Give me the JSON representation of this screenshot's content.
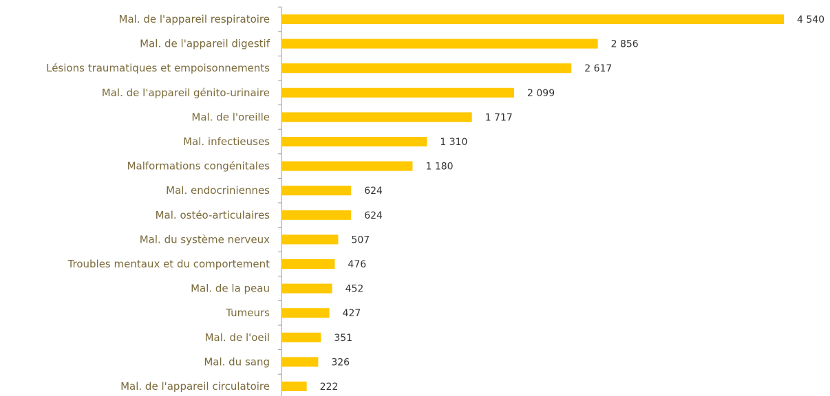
{
  "chart_data": {
    "type": "bar",
    "orientation": "horizontal",
    "categories": [
      "Mal. de l'appareil respiratoire",
      "Mal. de l'appareil digestif",
      "Lésions traumatiques et empoisonnements",
      "Mal. de l'appareil génito-urinaire",
      "Mal. de l'oreille",
      "Mal. infectieuses",
      "Malformations congénitales",
      "Mal. endocriniennes",
      "Mal. ostéo-articulaires",
      "Mal. du système nerveux",
      "Troubles mentaux et du comportement",
      "Mal. de la peau",
      "Tumeurs",
      "Mal. de l'oeil",
      "Mal. du sang",
      "Mal. de l'appareil circulatoire"
    ],
    "values": [
      4540,
      2856,
      2617,
      2099,
      1717,
      1310,
      1180,
      624,
      624,
      507,
      476,
      452,
      427,
      351,
      326,
      222
    ],
    "value_labels": [
      "4 540",
      "2 856",
      "2 617",
      "2 099",
      "1 717",
      "1 310",
      "1 180",
      "624",
      "624",
      "507",
      "476",
      "452",
      "427",
      "351",
      "326",
      "222"
    ],
    "xlim": [
      0,
      4540
    ],
    "grid": false,
    "colors": {
      "bar": "#FFC800",
      "axis": "#999999",
      "category_text": "#7a6a3a",
      "value_text": "#333333"
    }
  }
}
